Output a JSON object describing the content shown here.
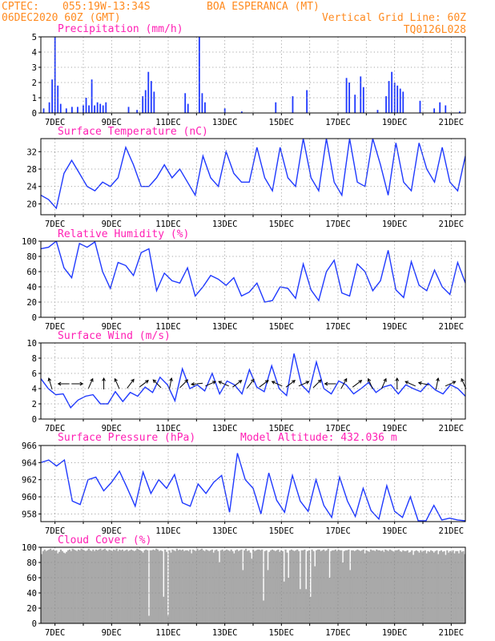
{
  "header": {
    "org": "CPTEC:",
    "coords": "055:19W-13:34S",
    "location": "BOA ESPERANCA (MT)",
    "date": "06DEC2020 60Z (GMT)",
    "grid_note": "Vertical Grid Line: 60Z",
    "code": "TQ0126L028"
  },
  "colors": {
    "header": "#ff8a1f",
    "title": "#ff1fb4",
    "series": "#1f39ff",
    "cloud": "#a9a9a9",
    "grid": "#8a8a8a"
  },
  "chart_data": [
    {
      "type": "bar",
      "title": "Precipitation (mm/h)",
      "x_labels": [
        "7DEC",
        "9DEC",
        "11DEC",
        "13DEC",
        "15DEC",
        "17DEC",
        "19DEC",
        "21DEC"
      ],
      "ylim": [
        0,
        5
      ],
      "yticks": [
        0,
        1,
        2,
        3,
        4,
        5
      ],
      "grid": true,
      "events": [
        [
          0.1,
          0.3
        ],
        [
          0.3,
          0.7
        ],
        [
          0.4,
          2.2
        ],
        [
          0.5,
          5.0
        ],
        [
          0.6,
          1.8
        ],
        [
          0.7,
          0.6
        ],
        [
          0.9,
          0.3
        ],
        [
          1.1,
          0.4
        ],
        [
          1.3,
          0.4
        ],
        [
          1.5,
          0.5
        ],
        [
          1.6,
          1.0
        ],
        [
          1.7,
          0.5
        ],
        [
          1.8,
          2.2
        ],
        [
          1.9,
          0.5
        ],
        [
          2.0,
          0.7
        ],
        [
          2.1,
          0.6
        ],
        [
          2.2,
          0.5
        ],
        [
          2.3,
          0.7
        ],
        [
          3.1,
          0.4
        ],
        [
          3.4,
          0.2
        ],
        [
          3.6,
          1.1
        ],
        [
          3.7,
          1.5
        ],
        [
          3.8,
          2.7
        ],
        [
          3.9,
          2.1
        ],
        [
          4.0,
          1.4
        ],
        [
          5.1,
          1.3
        ],
        [
          5.2,
          0.6
        ],
        [
          5.6,
          5.0
        ],
        [
          5.7,
          1.3
        ],
        [
          5.8,
          0.7
        ],
        [
          6.5,
          0.3
        ],
        [
          7.1,
          0.1
        ],
        [
          8.3,
          0.7
        ],
        [
          8.9,
          1.1
        ],
        [
          9.4,
          1.5
        ],
        [
          10.8,
          2.3
        ],
        [
          10.9,
          2.0
        ],
        [
          11.1,
          1.2
        ],
        [
          11.3,
          2.4
        ],
        [
          11.4,
          1.7
        ],
        [
          11.9,
          0.2
        ],
        [
          12.2,
          1.1
        ],
        [
          12.3,
          2.1
        ],
        [
          12.4,
          2.7
        ],
        [
          12.5,
          2.0
        ],
        [
          12.6,
          1.8
        ],
        [
          12.7,
          1.6
        ],
        [
          12.8,
          1.4
        ],
        [
          13.4,
          0.8
        ],
        [
          13.9,
          0.3
        ],
        [
          14.1,
          0.7
        ],
        [
          14.3,
          0.5
        ],
        [
          14.8,
          0.1
        ]
      ]
    },
    {
      "type": "line",
      "title": "Surface Temperature (nC)",
      "x_labels": [
        "7DEC",
        "9DEC",
        "11DEC",
        "13DEC",
        "15DEC",
        "17DEC",
        "19DEC",
        "21DEC"
      ],
      "ylim": [
        17.5,
        35
      ],
      "yticks": [
        20,
        24,
        28,
        32
      ],
      "grid": true,
      "values": [
        22,
        21,
        19,
        27,
        30,
        27,
        24,
        23,
        25,
        24,
        26,
        33,
        29,
        24,
        24,
        26,
        29,
        26,
        28,
        25,
        22,
        31,
        26,
        24,
        32,
        27,
        25,
        25,
        33,
        26,
        23,
        33,
        26,
        24,
        35,
        26,
        23,
        35,
        25,
        22,
        35,
        25,
        24,
        35,
        29,
        22,
        34,
        25,
        23,
        34,
        28,
        25,
        33,
        25,
        23,
        31
      ]
    },
    {
      "type": "line",
      "title": "Relative Humidity (%)",
      "x_labels": [
        "7DEC",
        "9DEC",
        "11DEC",
        "13DEC",
        "15DEC",
        "17DEC",
        "19DEC",
        "21DEC"
      ],
      "ylim": [
        0,
        100
      ],
      "yticks": [
        0,
        20,
        40,
        60,
        80,
        100
      ],
      "grid": true,
      "values": [
        90,
        92,
        100,
        65,
        52,
        97,
        92,
        99,
        60,
        38,
        72,
        68,
        55,
        85,
        90,
        35,
        58,
        48,
        45,
        65,
        28,
        40,
        55,
        50,
        42,
        52,
        28,
        33,
        45,
        20,
        22,
        40,
        38,
        25,
        70,
        36,
        22,
        60,
        75,
        32,
        28,
        70,
        60,
        35,
        48,
        88,
        36,
        26,
        73,
        42,
        35,
        62,
        40,
        30,
        72,
        45
      ]
    },
    {
      "type": "line",
      "title": "Surface Wind (m/s)",
      "x_labels": [
        "7DEC",
        "9DEC",
        "11DEC",
        "13DEC",
        "15DEC",
        "17DEC",
        "19DEC",
        "21DEC"
      ],
      "ylim": [
        0,
        10
      ],
      "yticks": [
        0,
        2,
        4,
        6,
        8,
        10
      ],
      "grid": true,
      "values": [
        5.3,
        4.0,
        3.2,
        3.3,
        1.5,
        2.5,
        3.0,
        3.2,
        2.0,
        2.0,
        3.6,
        2.3,
        3.5,
        3.0,
        4.2,
        3.5,
        5.5,
        4.5,
        2.4,
        6.6,
        4.0,
        4.5,
        3.7,
        6.0,
        3.3,
        5.0,
        4.5,
        3.3,
        6.5,
        4.2,
        3.6,
        7.0,
        4.0,
        3.1,
        8.6,
        4.5,
        3.5,
        7.5,
        4.0,
        3.3,
        5.0,
        4.5,
        3.3,
        4.0,
        4.8,
        3.5,
        4.2,
        4.5,
        3.3,
        4.5,
        4.0,
        3.6,
        4.7,
        3.8,
        3.3,
        4.5,
        4.0,
        3.0
      ],
      "arrows": [
        [
          -0.3,
          1.0
        ],
        [
          -1,
          0
        ],
        [
          1,
          0
        ],
        [
          0.4,
          0.9
        ],
        [
          0,
          1
        ],
        [
          -0.4,
          0.9
        ],
        [
          0.6,
          0.8
        ],
        [
          0.8,
          0.6
        ],
        [
          -0.7,
          0.7
        ],
        [
          0.2,
          1
        ],
        [
          0.7,
          0.7
        ],
        [
          -1,
          -0.1
        ],
        [
          0.9,
          0.4
        ],
        [
          -0.9,
          0.4
        ],
        [
          0.8,
          0.6
        ],
        [
          0.6,
          0.8
        ],
        [
          0.8,
          0.6
        ],
        [
          -0.9,
          0.4
        ],
        [
          0.8,
          0.6
        ],
        [
          0.9,
          0.4
        ],
        [
          0.7,
          0.7
        ],
        [
          -1,
          0
        ],
        [
          0.5,
          0.9
        ],
        [
          0.8,
          0.6
        ],
        [
          -0.4,
          0.9
        ],
        [
          0.4,
          0.9
        ],
        [
          0,
          1
        ],
        [
          -0.9,
          0.4
        ],
        [
          -0.9,
          0.2
        ],
        [
          0.2,
          1
        ],
        [
          0.9,
          0.4
        ],
        [
          -0.4,
          0.9
        ]
      ]
    },
    {
      "type": "line",
      "title": "Surface Pressure (hPa)",
      "annotation": "Model Altitude: 432.036 m",
      "x_labels": [
        "7DEC",
        "9DEC",
        "11DEC",
        "13DEC",
        "15DEC",
        "17DEC",
        "19DEC",
        "21DEC"
      ],
      "ylim": [
        957.1,
        966
      ],
      "yticks": [
        958,
        960,
        962,
        964,
        966
      ],
      "grid": true,
      "values": [
        964,
        964.3,
        963.6,
        964.3,
        959.5,
        959.1,
        962,
        962.3,
        960.7,
        961.7,
        963,
        961,
        958.9,
        962.9,
        960.4,
        962,
        961,
        962.6,
        959.3,
        958.9,
        961.5,
        960.4,
        961.7,
        962.5,
        958.2,
        965.1,
        962,
        961,
        958,
        962.8,
        959.6,
        958.2,
        962.5,
        959.5,
        958.3,
        962,
        959,
        957.6,
        962.3,
        959.5,
        957.7,
        961,
        958.4,
        957.4,
        961.3,
        958.3,
        957.6,
        960,
        957.2,
        957.2,
        959,
        957.3,
        957.5,
        957.3,
        957.2
      ]
    },
    {
      "type": "area",
      "title": "Cloud Cover (%)",
      "x_labels": [
        "7DEC",
        "9DEC",
        "11DEC",
        "13DEC",
        "15DEC",
        "17DEC",
        "19DEC",
        "21DEC"
      ],
      "ylim": [
        0,
        100
      ],
      "yticks": [
        0,
        20,
        40,
        60,
        80,
        100
      ],
      "grid": true,
      "values": [
        91,
        95,
        97,
        95,
        96,
        97,
        98,
        96,
        97,
        95,
        96,
        92,
        94,
        97,
        95,
        93,
        92,
        94,
        96,
        97,
        95,
        98,
        97,
        96,
        95,
        97,
        96,
        98,
        97,
        96,
        95,
        96,
        98,
        96,
        95,
        97,
        95,
        97,
        96,
        97,
        98,
        96,
        97,
        98,
        96,
        95,
        97,
        96,
        95,
        97,
        96,
        98,
        95,
        97,
        96,
        97,
        95,
        96,
        97,
        95,
        96,
        97,
        96,
        95,
        96,
        98,
        97,
        96,
        95,
        93,
        96,
        97,
        96,
        10,
        96,
        96,
        97,
        96,
        98,
        97,
        95,
        96,
        95,
        35,
        97,
        94,
        10,
        96,
        93,
        97,
        96,
        95,
        98,
        96,
        97,
        96,
        97,
        95,
        96,
        96,
        95,
        97,
        92,
        97,
        96,
        95,
        98,
        96,
        97,
        98,
        96,
        95,
        97,
        96,
        95,
        96,
        97,
        93,
        96,
        97,
        95,
        80,
        96,
        97,
        95,
        96,
        97,
        96,
        95,
        97,
        95,
        92,
        96,
        97,
        95,
        96,
        97,
        70,
        96,
        98,
        95,
        96,
        93,
        85,
        97,
        95,
        96,
        97,
        97,
        96,
        97,
        30,
        95,
        96,
        70,
        94,
        96,
        97,
        96,
        95,
        96,
        97,
        94,
        96,
        95,
        55,
        97,
        93,
        60,
        96,
        97,
        96,
        95,
        96,
        97,
        95,
        45,
        96,
        96,
        97,
        45,
        95,
        96,
        35,
        97,
        95,
        75,
        96,
        97,
        97,
        95,
        96,
        97,
        95,
        96,
        98,
        60,
        95,
        96,
        96,
        97,
        95,
        97,
        96,
        96,
        80,
        95,
        96,
        96,
        97,
        70,
        96,
        96,
        95,
        96,
        97,
        96,
        95,
        96,
        97,
        92,
        96,
        95,
        94,
        97,
        96,
        96,
        95,
        97,
        96,
        96,
        95,
        96,
        94,
        97,
        96,
        95,
        97,
        96,
        95,
        94,
        96,
        96,
        97,
        95,
        94,
        96,
        95,
        95,
        96,
        93,
        94,
        96,
        90,
        95,
        96,
        95,
        93,
        96,
        94,
        95,
        96,
        92,
        95,
        94,
        96,
        95,
        93,
        95,
        96,
        91,
        95,
        96,
        94,
        95,
        90,
        96,
        93,
        95,
        94,
        96,
        92,
        95,
        95,
        92,
        96,
        94,
        95,
        91
      ]
    }
  ]
}
